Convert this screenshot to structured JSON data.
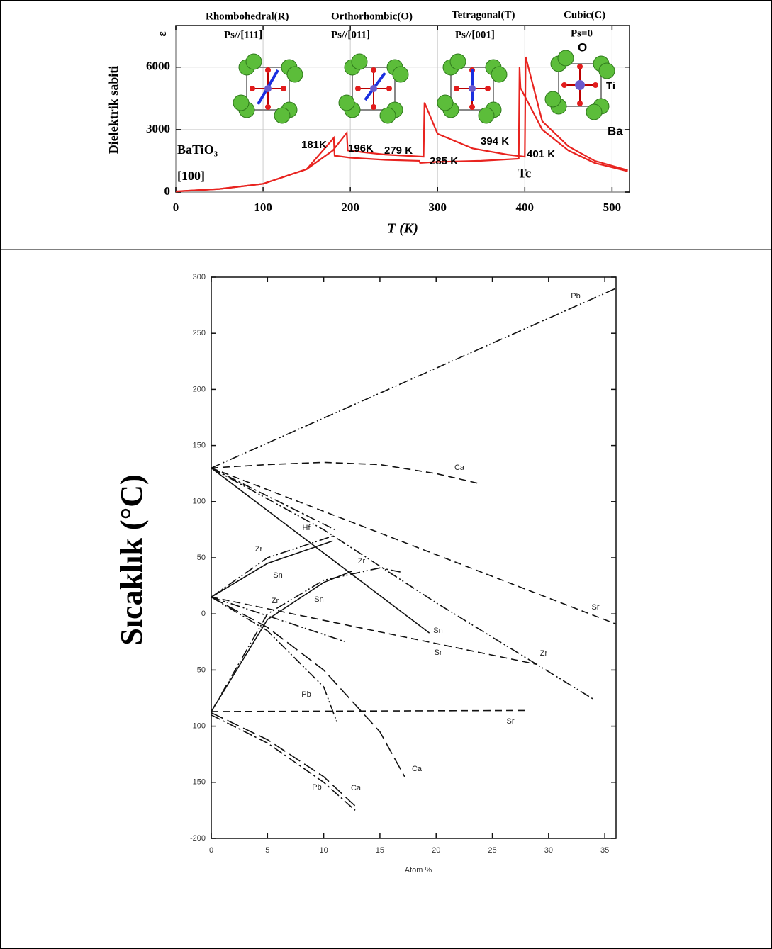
{
  "chart_data": [
    {
      "type": "line",
      "xlabel": "T (K)",
      "ylabel": "Dielektrik sabiti",
      "ylabel2": "ε",
      "xlim": [
        0,
        520
      ],
      "xticks": [
        0,
        100,
        200,
        300,
        400,
        500
      ],
      "ylim": [
        0,
        8000
      ],
      "yticks": [
        0,
        3000,
        6000
      ],
      "grid": true,
      "series": [
        {
          "color": "#e8231f",
          "x": [
            0,
            50,
            100,
            150,
            180,
            196,
            197,
            240,
            284,
            285,
            300,
            340,
            380,
            400,
            401,
            420,
            450,
            480,
            518
          ],
          "values": [
            30,
            150,
            400,
            1100,
            2000,
            2850,
            2000,
            1800,
            1700,
            4300,
            2800,
            2100,
            1800,
            1700,
            6500,
            3400,
            2200,
            1500,
            1050
          ]
        },
        {
          "color": "#e8231f",
          "x": [
            518,
            480,
            450,
            420,
            395,
            394,
            393,
            350,
            300,
            280,
            279,
            240,
            200,
            182,
            181,
            150,
            100,
            50,
            0
          ],
          "values": [
            1000,
            1400,
            2000,
            3000,
            5000,
            6000,
            1600,
            1500,
            1450,
            1400,
            1500,
            1550,
            1650,
            1750,
            2600,
            1100,
            400,
            150,
            30
          ]
        }
      ],
      "annotations": [
        "Rhombohedral(R)",
        "Ps//[111]",
        "Orthorhombic(O)",
        "Ps//[011]",
        "Tetragonal(T)",
        "Ps//[001]",
        "Cubic(C)",
        "Ps=0",
        "O",
        "Ti",
        "Ba",
        "BaTiO₃",
        "[100]",
        "181K",
        "196K",
        "279 K",
        "285 K",
        "394 K",
        "401 K",
        "Tc"
      ]
    },
    {
      "type": "line",
      "xlabel": "Atom %",
      "ylabel": "Sıcaklık (°C)",
      "xlim": [
        0,
        36
      ],
      "xticks": [
        0,
        5,
        10,
        15,
        20,
        25,
        30,
        35
      ],
      "ylim": [
        -200,
        300
      ],
      "yticks": [
        300,
        250,
        200,
        150,
        100,
        50,
        0,
        -50,
        -100,
        -150,
        -200
      ],
      "series": [
        {
          "name": "Pb",
          "dash": "dash-dot-dot",
          "x": [
            0,
            36
          ],
          "values": [
            130,
            290
          ]
        },
        {
          "name": "Ca",
          "dash": "dashed",
          "x": [
            0,
            5,
            10,
            15,
            20,
            23.9
          ],
          "values": [
            130,
            133,
            135,
            133,
            125,
            116
          ]
        },
        {
          "name": "Sn",
          "dash": "solid",
          "x": [
            0,
            19.4
          ],
          "values": [
            130,
            -17
          ]
        },
        {
          "name": "Hf",
          "dash": "dash-dot",
          "x": [
            0,
            11
          ],
          "values": [
            130,
            75
          ]
        },
        {
          "name": "Zr",
          "dash": "dash-dot-dot",
          "x": [
            0,
            10,
            20,
            34
          ],
          "values": [
            130,
            75,
            10,
            -76
          ]
        },
        {
          "name": "Sr",
          "dash": "dashed",
          "x": [
            0,
            36
          ],
          "values": [
            130,
            -9
          ]
        },
        {
          "name": "Zr",
          "dash": "dash-dot-dot",
          "x": [
            0,
            5,
            11
          ],
          "values": [
            15,
            50,
            70
          ]
        },
        {
          "name": "Sn",
          "dash": "solid",
          "x": [
            0,
            5,
            10.8
          ],
          "values": [
            15,
            45,
            65
          ]
        },
        {
          "name": "Zr",
          "dash": "dash-dot-dot",
          "x": [
            0,
            5,
            10,
            15,
            17
          ],
          "values": [
            -87,
            0,
            30,
            41,
            37
          ]
        },
        {
          "name": "Sn",
          "dash": "solid",
          "x": [
            0,
            5,
            10,
            12.5
          ],
          "values": [
            -87,
            -5,
            28,
            38
          ]
        },
        {
          "name": "Sr",
          "dash": "dashed",
          "x": [
            0,
            29
          ],
          "values": [
            15,
            -45
          ]
        },
        {
          "name": "Pb",
          "dash": "dash-dot-dot",
          "x": [
            0,
            5,
            10,
            11.2
          ],
          "values": [
            15,
            -15,
            -65,
            -97
          ]
        },
        {
          "name": "Ca",
          "dash": "long-dash",
          "x": [
            0,
            5,
            10,
            15,
            17.2
          ],
          "values": [
            15,
            -12,
            -50,
            -105,
            -145
          ]
        },
        {
          "name": "Sr",
          "dash": "dashed",
          "x": [
            0,
            28
          ],
          "values": [
            -87,
            -86
          ]
        },
        {
          "name": "Pb",
          "dash": "dash-dot",
          "x": [
            0,
            5,
            10,
            12.8
          ],
          "values": [
            -90,
            -115,
            -150,
            -175
          ]
        },
        {
          "name": "Ca",
          "dash": "long-dash",
          "x": [
            0,
            5,
            10,
            13
          ],
          "values": [
            -88,
            -112,
            -145,
            -173
          ]
        },
        {
          "name": "Zr",
          "dash": "dash-dot-dot",
          "x": [
            0,
            6,
            12
          ],
          "values": [
            15,
            -5,
            -25
          ]
        }
      ]
    }
  ]
}
